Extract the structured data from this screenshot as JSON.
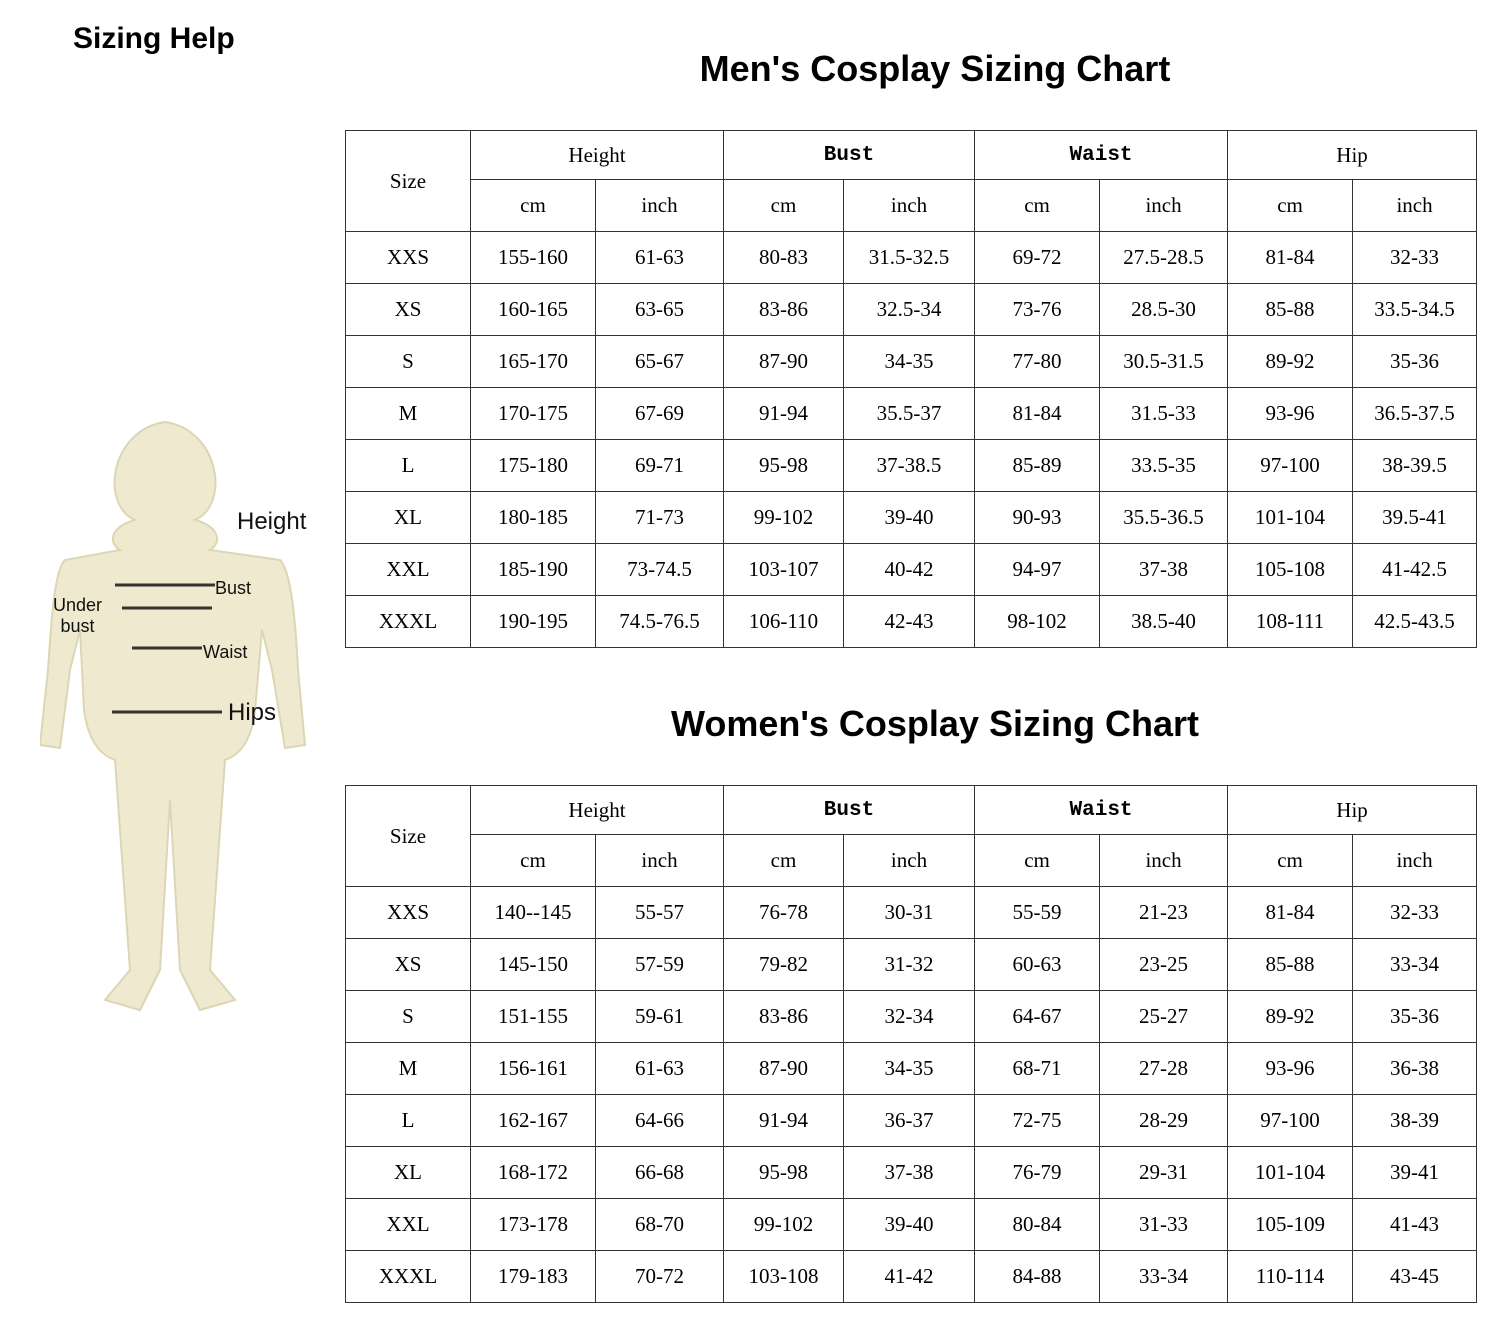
{
  "title": "Sizing Help",
  "figure": {
    "labels": [
      "Height",
      "Bust",
      "Under bust",
      "Waist",
      "Hips"
    ]
  },
  "tables": [
    {
      "title": "Men's Cosplay Sizing Chart",
      "size_header": "Size",
      "groups": [
        "Height",
        "Bust",
        "Waist",
        "Hip"
      ],
      "units": [
        "cm",
        "inch",
        "cm",
        "inch",
        "cm",
        "inch",
        "cm",
        "inch"
      ],
      "rows": [
        [
          "XXS",
          "155-160",
          "61-63",
          "80-83",
          "31.5-32.5",
          "69-72",
          "27.5-28.5",
          "81-84",
          "32-33"
        ],
        [
          "XS",
          "160-165",
          "63-65",
          "83-86",
          "32.5-34",
          "73-76",
          "28.5-30",
          "85-88",
          "33.5-34.5"
        ],
        [
          "S",
          "165-170",
          "65-67",
          "87-90",
          "34-35",
          "77-80",
          "30.5-31.5",
          "89-92",
          "35-36"
        ],
        [
          "M",
          "170-175",
          "67-69",
          "91-94",
          "35.5-37",
          "81-84",
          "31.5-33",
          "93-96",
          "36.5-37.5"
        ],
        [
          "L",
          "175-180",
          "69-71",
          "95-98",
          "37-38.5",
          "85-89",
          "33.5-35",
          "97-100",
          "38-39.5"
        ],
        [
          "XL",
          "180-185",
          "71-73",
          "99-102",
          "39-40",
          "90-93",
          "35.5-36.5",
          "101-104",
          "39.5-41"
        ],
        [
          "XXL",
          "185-190",
          "73-74.5",
          "103-107",
          "40-42",
          "94-97",
          "37-38",
          "105-108",
          "41-42.5"
        ],
        [
          "XXXL",
          "190-195",
          "74.5-76.5",
          "106-110",
          "42-43",
          "98-102",
          "38.5-40",
          "108-111",
          "42.5-43.5"
        ]
      ]
    },
    {
      "title": "Women's Cosplay Sizing Chart",
      "size_header": "Size",
      "groups": [
        "Height",
        "Bust",
        "Waist",
        "Hip"
      ],
      "units": [
        "cm",
        "inch",
        "cm",
        "inch",
        "cm",
        "inch",
        "cm",
        "inch"
      ],
      "rows": [
        [
          "XXS",
          "140--145",
          "55-57",
          "76-78",
          "30-31",
          "55-59",
          "21-23",
          "81-84",
          "32-33"
        ],
        [
          "XS",
          "145-150",
          "57-59",
          "79-82",
          "31-32",
          "60-63",
          "23-25",
          "85-88",
          "33-34"
        ],
        [
          "S",
          "151-155",
          "59-61",
          "83-86",
          "32-34",
          "64-67",
          "25-27",
          "89-92",
          "35-36"
        ],
        [
          "M",
          "156-161",
          "61-63",
          "87-90",
          "34-35",
          "68-71",
          "27-28",
          "93-96",
          "36-38"
        ],
        [
          "L",
          "162-167",
          "64-66",
          "91-94",
          "36-37",
          "72-75",
          "28-29",
          "97-100",
          "38-39"
        ],
        [
          "XL",
          "168-172",
          "66-68",
          "95-98",
          "37-38",
          "76-79",
          "29-31",
          "101-104",
          "39-41"
        ],
        [
          "XXL",
          "173-178",
          "68-70",
          "99-102",
          "39-40",
          "80-84",
          "31-33",
          "105-109",
          "41-43"
        ],
        [
          "XXXL",
          "179-183",
          "70-72",
          "103-108",
          "41-42",
          "84-88",
          "33-34",
          "110-114",
          "43-45"
        ]
      ]
    }
  ]
}
